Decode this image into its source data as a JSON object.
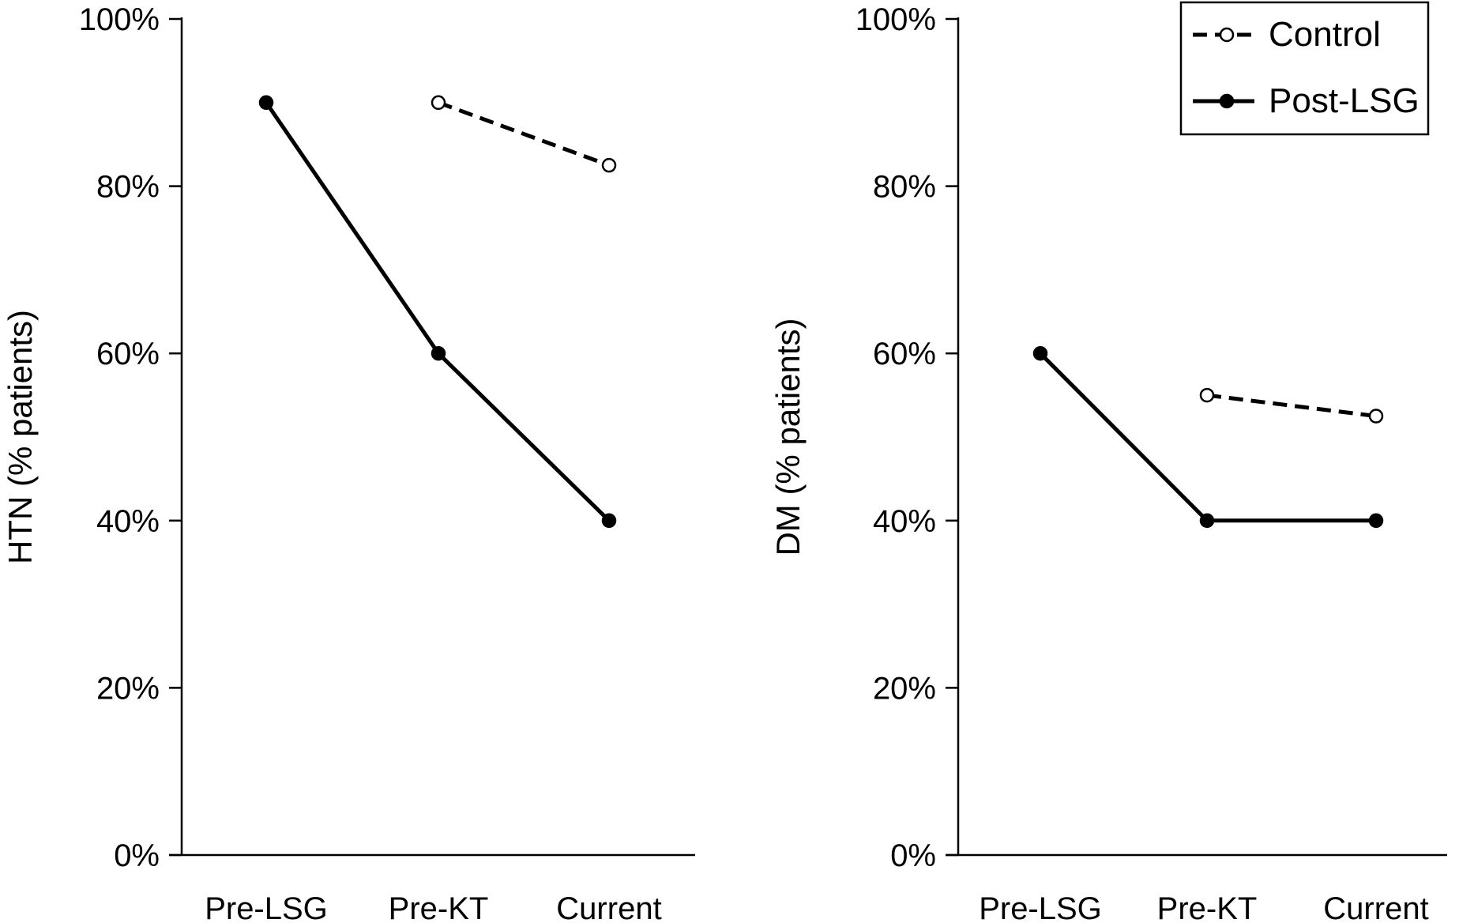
{
  "chart_data": [
    {
      "type": "line",
      "categories": [
        "Pre-LSG",
        "Pre-KT",
        "Current"
      ],
      "ylabel": "HTN (% patients)",
      "ylim": [
        0,
        100
      ],
      "yticks": [
        "0%",
        "20%",
        "40%",
        "60%",
        "80%",
        "100%"
      ],
      "grid": false,
      "series": [
        {
          "name": "Control",
          "values": [
            null,
            90,
            82.5
          ],
          "style": "dashed",
          "marker": "open-circle"
        },
        {
          "name": "Post-LSG",
          "values": [
            90,
            60,
            40
          ],
          "style": "solid",
          "marker": "filled-circle"
        }
      ]
    },
    {
      "type": "line",
      "categories": [
        "Pre-LSG",
        "Pre-KT",
        "Current"
      ],
      "ylabel": "DM (% patients)",
      "ylim": [
        0,
        100
      ],
      "yticks": [
        "0%",
        "20%",
        "40%",
        "60%",
        "80%",
        "100%"
      ],
      "grid": false,
      "series": [
        {
          "name": "Control",
          "values": [
            null,
            55,
            52.5
          ],
          "style": "dashed",
          "marker": "open-circle"
        },
        {
          "name": "Post-LSG",
          "values": [
            60,
            40,
            40
          ],
          "style": "solid",
          "marker": "filled-circle"
        }
      ]
    }
  ],
  "legend": {
    "placement": "top-right",
    "items": [
      {
        "label": "Control",
        "style": "dashed",
        "marker": "open-circle"
      },
      {
        "label": "Post-LSG",
        "style": "solid",
        "marker": "filled-circle"
      }
    ]
  },
  "colors": {
    "line": "#000000",
    "background": "#ffffff"
  }
}
